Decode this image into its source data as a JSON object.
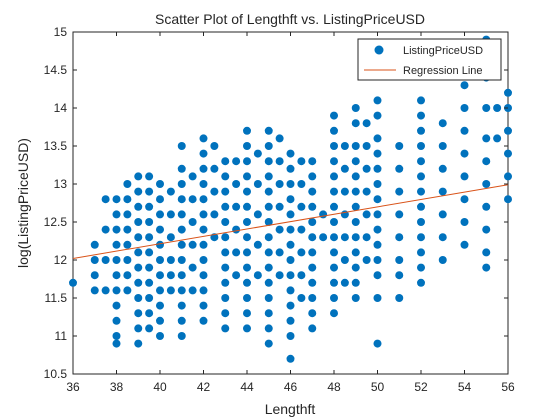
{
  "chart_data": {
    "type": "scatter",
    "title": "Scatter Plot of Lengthft vs. ListingPriceUSD",
    "xlabel": "Lengthft",
    "ylabel": "log(ListingPriceUSD)",
    "xlim": [
      36,
      56
    ],
    "ylim": [
      10.5,
      15
    ],
    "xticks": [
      "36",
      "38",
      "40",
      "42",
      "44",
      "46",
      "48",
      "50",
      "52",
      "54",
      "56"
    ],
    "yticks": [
      "10.5",
      "11",
      "11.5",
      "12",
      "12.5",
      "13",
      "13.5",
      "14",
      "14.5",
      "15"
    ],
    "grid": false,
    "legend_position": "top-right",
    "colors": {
      "points": "#0072BD",
      "regression": "#D95319",
      "axis": "#262626"
    },
    "legend": [
      {
        "label": "ListingPriceUSD",
        "marker": "dot"
      },
      {
        "label": "Regression Line",
        "marker": "line"
      }
    ],
    "series": [
      {
        "name": "ListingPriceUSD",
        "columns": [
          {
            "x": 36.0,
            "ys": [
              11.7
            ]
          },
          {
            "x": 37.0,
            "ys": [
              12.2,
              12.0,
              11.8,
              11.6
            ]
          },
          {
            "x": 37.5,
            "ys": [
              12.8,
              12.4,
              12.0,
              11.6
            ]
          },
          {
            "x": 38.0,
            "ys": [
              12.8,
              12.6,
              12.4,
              12.2,
              12.0,
              11.8,
              11.6,
              11.4,
              11.2,
              11.0,
              10.9
            ]
          },
          {
            "x": 38.5,
            "ys": [
              13.0,
              12.8,
              12.6,
              12.4,
              12.2,
              12.0,
              11.8,
              11.6
            ]
          },
          {
            "x": 39.0,
            "ys": [
              13.1,
              12.9,
              12.7,
              12.5,
              12.3,
              12.1,
              11.9,
              11.7,
              11.5,
              11.3,
              11.1,
              10.9
            ]
          },
          {
            "x": 39.5,
            "ys": [
              13.1,
              12.9,
              12.7,
              12.5,
              12.3,
              12.1,
              11.9,
              11.7,
              11.5,
              11.3,
              11.1
            ]
          },
          {
            "x": 40.0,
            "ys": [
              13.0,
              12.8,
              12.6,
              12.4,
              12.2,
              12.0,
              11.8,
              11.6,
              11.4,
              11.2,
              11.0
            ]
          },
          {
            "x": 40.5,
            "ys": [
              12.9,
              12.6,
              12.3,
              12.0,
              11.8,
              11.6
            ]
          },
          {
            "x": 41.0,
            "ys": [
              13.5,
              13.2,
              13.0,
              12.8,
              12.6,
              12.4,
              12.2,
              12.0,
              11.8,
              11.6,
              11.4,
              11.2,
              11.0
            ]
          },
          {
            "x": 41.5,
            "ys": [
              13.1,
              12.8,
              12.5,
              12.2,
              11.9,
              11.6
            ]
          },
          {
            "x": 42.0,
            "ys": [
              13.6,
              13.4,
              13.2,
              13.0,
              12.8,
              12.6,
              12.4,
              12.2,
              12.0,
              11.8,
              11.6,
              11.4,
              11.2
            ]
          },
          {
            "x": 42.5,
            "ys": [
              13.5,
              13.2,
              12.9,
              12.6,
              12.3
            ]
          },
          {
            "x": 43.0,
            "ys": [
              13.3,
              13.1,
              12.9,
              12.7,
              12.5,
              12.3,
              12.1,
              11.9,
              11.7,
              11.5,
              11.3,
              11.1
            ]
          },
          {
            "x": 43.5,
            "ys": [
              13.3,
              13.0,
              12.7,
              12.4,
              12.1,
              11.8
            ]
          },
          {
            "x": 44.0,
            "ys": [
              13.7,
              13.5,
              13.3,
              13.1,
              12.9,
              12.7,
              12.5,
              12.3,
              12.1,
              11.9,
              11.7,
              11.5,
              11.3,
              11.1
            ]
          },
          {
            "x": 44.5,
            "ys": [
              13.4,
              13.0,
              12.6,
              12.2,
              11.8
            ]
          },
          {
            "x": 45.0,
            "ys": [
              13.7,
              13.5,
              13.3,
              13.1,
              12.9,
              12.7,
              12.5,
              12.3,
              12.1,
              11.9,
              11.7,
              11.5,
              11.3,
              11.1,
              10.9
            ]
          },
          {
            "x": 45.5,
            "ys": [
              13.6,
              13.3,
              13.0,
              12.7,
              12.4,
              12.1,
              11.8
            ]
          },
          {
            "x": 46.0,
            "ys": [
              13.4,
              13.2,
              13.0,
              12.8,
              12.6,
              12.4,
              12.2,
              12.0,
              11.8,
              11.6,
              11.4,
              11.2,
              11.0,
              10.7
            ]
          },
          {
            "x": 46.5,
            "ys": [
              13.3,
              13.0,
              12.7,
              12.4,
              12.1,
              11.8,
              11.5
            ]
          },
          {
            "x": 47.0,
            "ys": [
              13.3,
              13.1,
              12.9,
              12.7,
              12.5,
              12.3,
              12.1,
              11.9,
              11.7,
              11.5,
              11.3,
              11.1
            ]
          },
          {
            "x": 47.5,
            "ys": [
              12.6,
              12.3
            ]
          },
          {
            "x": 48.0,
            "ys": [
              13.9,
              13.7,
              13.5,
              13.3,
              13.1,
              12.9,
              12.7,
              12.5,
              12.3,
              12.1,
              11.9,
              11.7,
              11.5,
              11.3
            ]
          },
          {
            "x": 48.5,
            "ys": [
              13.5,
              13.2,
              12.9,
              12.6,
              12.3,
              12.0,
              11.7
            ]
          },
          {
            "x": 49.0,
            "ys": [
              14.0,
              13.8,
              13.5,
              13.3,
              13.1,
              12.9,
              12.7,
              12.5,
              12.3,
              12.1,
              11.9,
              11.7,
              11.5
            ]
          },
          {
            "x": 49.5,
            "ys": [
              13.8,
              13.5,
              13.2,
              12.9,
              12.6,
              12.3,
              12.0
            ]
          },
          {
            "x": 50.0,
            "ys": [
              14.1,
              13.9,
              13.6,
              13.4,
              13.2,
              13.0,
              12.8,
              12.6,
              12.4,
              12.2,
              12.0,
              11.8,
              11.5,
              10.9
            ]
          },
          {
            "x": 51.0,
            "ys": [
              13.5,
              13.2,
              12.9,
              12.6,
              12.3,
              12.0,
              11.8,
              11.5
            ]
          },
          {
            "x": 52.0,
            "ys": [
              14.1,
              13.9,
              13.7,
              13.5,
              13.3,
              13.1,
              12.9,
              12.7,
              12.5,
              12.3,
              12.1,
              11.9,
              11.7
            ]
          },
          {
            "x": 53.0,
            "ys": [
              13.8,
              13.5,
              13.2,
              12.9,
              12.6,
              12.3,
              12.0
            ]
          },
          {
            "x": 54.0,
            "ys": [
              14.3,
              14.0,
              13.7,
              13.4,
              13.1,
              12.8,
              12.5,
              12.2
            ]
          },
          {
            "x": 55.0,
            "ys": [
              14.9,
              14.4,
              14.0,
              13.6,
              13.3,
              13.0,
              12.7,
              12.4,
              12.1,
              11.9
            ]
          },
          {
            "x": 55.5,
            "ys": [
              14.0,
              13.6
            ]
          },
          {
            "x": 56.0,
            "ys": [
              14.2,
              14.0,
              13.7,
              13.4,
              13.1,
              12.8
            ]
          }
        ]
      },
      {
        "name": "Regression Line",
        "x": [
          36,
          56
        ],
        "y": [
          12.02,
          12.99
        ]
      }
    ]
  }
}
